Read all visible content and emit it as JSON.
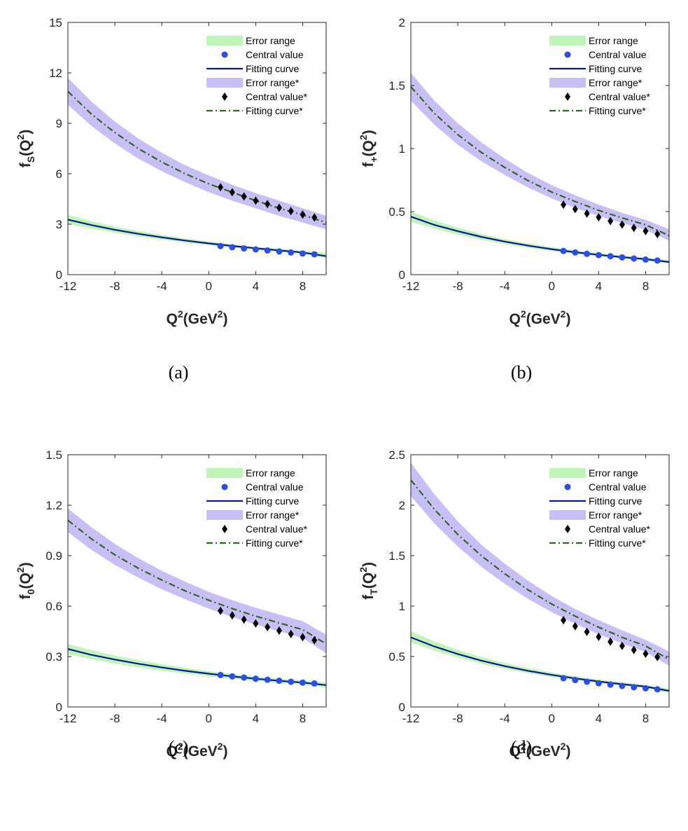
{
  "colors": {
    "band1": "#bff5b8",
    "band2": "#c8bff7",
    "point1": "#2a4fe8",
    "curve1": "#0a1a8c",
    "curve2": "#2d6a1c",
    "point2": "#000000",
    "axis": "#262626"
  },
  "legend": [
    {
      "key": "band1",
      "label": "Error range"
    },
    {
      "key": "point1",
      "label": "Central value"
    },
    {
      "key": "curve1",
      "label": "Fitting curve"
    },
    {
      "key": "band2",
      "label": "Error range*"
    },
    {
      "key": "point2",
      "label": "Central value*"
    },
    {
      "key": "curve2",
      "label": "Fitting curve*"
    }
  ],
  "chart_data": [
    {
      "panel": "a",
      "caption": "(a)",
      "type": "line",
      "ylabel_main": "f",
      "ylabel_sub": "S",
      "ylabel_paren": "(Q",
      "ylabel_sup": "2",
      "ylabel_close": ")",
      "xlabel_main": "Q",
      "xlabel_sup1": "2",
      "xlabel_mid": "(GeV",
      "xlabel_sup2": "2",
      "xlabel_close": ")",
      "xlim": [
        -12,
        10
      ],
      "ylim": [
        0,
        15
      ],
      "xticks": [
        -12,
        -8,
        -4,
        0,
        4,
        8
      ],
      "xtick_labels": [
        "-12",
        "-8",
        "-4",
        "0",
        "4",
        "8"
      ],
      "yticks": [
        0,
        3,
        6,
        9,
        12,
        15
      ],
      "ytick_labels": [
        "0",
        "3",
        "6",
        "9",
        "12",
        "15"
      ],
      "series1": {
        "fit_x": [
          -12,
          -10,
          -8,
          -6,
          -4,
          -2,
          0,
          2,
          4,
          6,
          8,
          10
        ],
        "fit_y": [
          3.27,
          2.95,
          2.67,
          2.43,
          2.22,
          2.03,
          1.86,
          1.71,
          1.57,
          1.44,
          1.32,
          1.1
        ],
        "band_lo": [
          3.02,
          2.74,
          2.5,
          2.28,
          2.08,
          1.91,
          1.75,
          1.61,
          1.48,
          1.35,
          1.22,
          0.98
        ],
        "band_hi": [
          3.55,
          3.18,
          2.86,
          2.6,
          2.37,
          2.16,
          1.97,
          1.8,
          1.66,
          1.53,
          1.42,
          1.3
        ],
        "points_x": [
          1,
          2,
          3,
          4,
          5,
          6,
          7,
          8,
          9
        ],
        "points_y": [
          1.7,
          1.63,
          1.56,
          1.5,
          1.44,
          1.38,
          1.32,
          1.26,
          1.21
        ]
      },
      "series2": {
        "fit_x": [
          -12,
          -10,
          -8,
          -6,
          -4,
          -2,
          0,
          2,
          4,
          6,
          8,
          10
        ],
        "fit_y": [
          10.9,
          9.55,
          8.45,
          7.5,
          6.7,
          6.0,
          5.4,
          4.9,
          4.4,
          3.95,
          3.55,
          3.1
        ],
        "band_lo": [
          10.1,
          8.85,
          7.8,
          6.9,
          6.15,
          5.5,
          4.9,
          4.4,
          3.95,
          3.5,
          3.1,
          2.7
        ],
        "band_hi": [
          11.7,
          10.3,
          9.1,
          8.1,
          7.25,
          6.5,
          5.9,
          5.35,
          4.85,
          4.4,
          3.95,
          3.5
        ],
        "points_x": [
          1,
          2,
          3,
          4,
          5,
          6,
          7,
          8,
          9
        ],
        "points_y": [
          5.2,
          4.9,
          4.65,
          4.4,
          4.2,
          3.98,
          3.78,
          3.58,
          3.4
        ]
      }
    },
    {
      "panel": "b",
      "caption": "(b)",
      "type": "line",
      "ylabel_main": "f",
      "ylabel_sub": "+",
      "ylabel_paren": "(Q",
      "ylabel_sup": "2",
      "ylabel_close": ")",
      "xlabel_main": "Q",
      "xlabel_sup1": "2",
      "xlabel_mid": "(GeV",
      "xlabel_sup2": "2",
      "xlabel_close": ")",
      "xlim": [
        -12,
        10
      ],
      "ylim": [
        0,
        2
      ],
      "xticks": [
        -12,
        -8,
        -4,
        0,
        4,
        8
      ],
      "xtick_labels": [
        "-12",
        "-8",
        "-4",
        "0",
        "4",
        "8"
      ],
      "yticks": [
        0,
        0.5,
        1,
        1.5,
        2
      ],
      "ytick_labels": [
        "0",
        "0.5",
        "1",
        "1.5",
        "2"
      ],
      "series1": {
        "fit_x": [
          -12,
          -10,
          -8,
          -6,
          -4,
          -2,
          0,
          2,
          4,
          6,
          8,
          10
        ],
        "fit_y": [
          0.46,
          0.395,
          0.345,
          0.3,
          0.262,
          0.23,
          0.202,
          0.178,
          0.157,
          0.139,
          0.123,
          0.1
        ],
        "band_lo": [
          0.42,
          0.365,
          0.318,
          0.277,
          0.243,
          0.213,
          0.187,
          0.165,
          0.145,
          0.128,
          0.112,
          0.09
        ],
        "band_hi": [
          0.5,
          0.43,
          0.372,
          0.323,
          0.282,
          0.247,
          0.218,
          0.192,
          0.17,
          0.151,
          0.135,
          0.115
        ],
        "points_x": [
          1,
          2,
          3,
          4,
          5,
          6,
          7,
          8,
          9
        ],
        "points_y": [
          0.188,
          0.176,
          0.165,
          0.155,
          0.146,
          0.137,
          0.128,
          0.12,
          0.112
        ]
      },
      "series2": {
        "fit_x": [
          -12,
          -10,
          -8,
          -6,
          -4,
          -2,
          0,
          2,
          4,
          6,
          8,
          10
        ],
        "fit_y": [
          1.49,
          1.28,
          1.11,
          0.97,
          0.85,
          0.745,
          0.655,
          0.58,
          0.51,
          0.45,
          0.395,
          0.31
        ],
        "band_lo": [
          1.38,
          1.19,
          1.03,
          0.9,
          0.79,
          0.69,
          0.605,
          0.53,
          0.465,
          0.41,
          0.355,
          0.27
        ],
        "band_hi": [
          1.6,
          1.38,
          1.2,
          1.05,
          0.92,
          0.805,
          0.71,
          0.63,
          0.555,
          0.49,
          0.435,
          0.36
        ],
        "points_x": [
          1,
          2,
          3,
          4,
          5,
          6,
          7,
          8,
          9
        ],
        "points_y": [
          0.555,
          0.52,
          0.485,
          0.455,
          0.425,
          0.397,
          0.371,
          0.346,
          0.322
        ]
      }
    },
    {
      "panel": "c",
      "caption": "(c)",
      "type": "line",
      "ylabel_main": "f",
      "ylabel_sub": "0",
      "ylabel_paren": "(Q",
      "ylabel_sup": "2",
      "ylabel_close": ")",
      "xlabel_main": "Q",
      "xlabel_sup1": "2",
      "xlabel_mid": "(GeV",
      "xlabel_sup2": "2",
      "xlabel_close": ")",
      "xlim": [
        -12,
        10
      ],
      "ylim": [
        0,
        1.5
      ],
      "xticks": [
        -12,
        -8,
        -4,
        0,
        4,
        8
      ],
      "xtick_labels": [
        "-12",
        "-8",
        "-4",
        "0",
        "4",
        "8"
      ],
      "yticks": [
        0,
        0.3,
        0.6,
        0.9,
        1.2,
        1.5
      ],
      "ytick_labels": [
        "0",
        "0.3",
        "0.6",
        "0.9",
        "1.2",
        "1.5"
      ],
      "series1": {
        "fit_x": [
          -12,
          -10,
          -8,
          -6,
          -4,
          -2,
          0,
          2,
          4,
          6,
          8,
          10
        ],
        "fit_y": [
          0.345,
          0.31,
          0.282,
          0.257,
          0.235,
          0.215,
          0.198,
          0.182,
          0.168,
          0.156,
          0.145,
          0.13
        ],
        "band_lo": [
          0.315,
          0.285,
          0.258,
          0.236,
          0.216,
          0.198,
          0.182,
          0.168,
          0.155,
          0.143,
          0.132,
          0.115
        ],
        "band_hi": [
          0.375,
          0.338,
          0.306,
          0.278,
          0.254,
          0.232,
          0.213,
          0.196,
          0.181,
          0.168,
          0.157,
          0.145
        ],
        "points_x": [
          1,
          2,
          3,
          4,
          5,
          6,
          7,
          8,
          9
        ],
        "points_y": [
          0.19,
          0.182,
          0.175,
          0.168,
          0.162,
          0.156,
          0.15,
          0.145,
          0.14
        ]
      },
      "series2": {
        "fit_x": [
          -12,
          -10,
          -8,
          -6,
          -4,
          -2,
          0,
          2,
          4,
          6,
          8,
          10
        ],
        "fit_y": [
          1.11,
          1.0,
          0.905,
          0.825,
          0.755,
          0.69,
          0.635,
          0.585,
          0.54,
          0.5,
          0.46,
          0.375
        ],
        "band_lo": [
          1.04,
          0.935,
          0.845,
          0.77,
          0.7,
          0.64,
          0.585,
          0.535,
          0.49,
          0.45,
          0.41,
          0.32
        ],
        "band_hi": [
          1.18,
          1.07,
          0.97,
          0.885,
          0.81,
          0.745,
          0.685,
          0.635,
          0.59,
          0.55,
          0.51,
          0.43
        ],
        "points_x": [
          1,
          2,
          3,
          4,
          5,
          6,
          7,
          8,
          9
        ],
        "points_y": [
          0.572,
          0.545,
          0.52,
          0.497,
          0.475,
          0.454,
          0.434,
          0.415,
          0.397
        ]
      }
    },
    {
      "panel": "d",
      "caption": "(d)",
      "type": "line",
      "ylabel_main": "f",
      "ylabel_sub": "T",
      "ylabel_paren": "(Q",
      "ylabel_sup": "2",
      "ylabel_close": ")",
      "xlabel_main": "Q",
      "xlabel_sup1": "2",
      "xlabel_mid": "(GeV",
      "xlabel_sup2": "2",
      "xlabel_close": ")",
      "xlim": [
        -12,
        10
      ],
      "ylim": [
        0,
        2.5
      ],
      "xticks": [
        -12,
        -8,
        -4,
        0,
        4,
        8
      ],
      "xtick_labels": [
        "-12",
        "-8",
        "-4",
        "0",
        "4",
        "8"
      ],
      "yticks": [
        0,
        0.5,
        1,
        1.5,
        2,
        2.5
      ],
      "ytick_labels": [
        "0",
        "0.5",
        "1",
        "1.5",
        "2",
        "2.5"
      ],
      "series1": {
        "fit_x": [
          -12,
          -10,
          -8,
          -6,
          -4,
          -2,
          0,
          2,
          4,
          6,
          8,
          10
        ],
        "fit_y": [
          0.69,
          0.6,
          0.525,
          0.46,
          0.405,
          0.358,
          0.318,
          0.283,
          0.253,
          0.226,
          0.202,
          0.16
        ],
        "band_lo": [
          0.64,
          0.56,
          0.49,
          0.43,
          0.378,
          0.334,
          0.297,
          0.264,
          0.236,
          0.21,
          0.187,
          0.145
        ],
        "band_hi": [
          0.75,
          0.65,
          0.565,
          0.495,
          0.435,
          0.384,
          0.341,
          0.304,
          0.272,
          0.244,
          0.219,
          0.18
        ],
        "points_x": [
          1,
          2,
          3,
          4,
          5,
          6,
          7,
          8,
          9
        ],
        "points_y": [
          0.285,
          0.267,
          0.25,
          0.235,
          0.221,
          0.208,
          0.196,
          0.185,
          0.175
        ]
      },
      "series2": {
        "fit_x": [
          -12,
          -10,
          -8,
          -6,
          -4,
          -2,
          0,
          2,
          4,
          6,
          8,
          10
        ],
        "fit_y": [
          2.25,
          1.96,
          1.71,
          1.5,
          1.32,
          1.16,
          1.02,
          0.9,
          0.79,
          0.69,
          0.605,
          0.47
        ],
        "band_lo": [
          2.09,
          1.82,
          1.59,
          1.39,
          1.22,
          1.07,
          0.94,
          0.825,
          0.72,
          0.63,
          0.545,
          0.41
        ],
        "band_hi": [
          2.42,
          2.11,
          1.84,
          1.61,
          1.42,
          1.25,
          1.1,
          0.97,
          0.86,
          0.76,
          0.665,
          0.55
        ],
        "points_x": [
          1,
          2,
          3,
          4,
          5,
          6,
          7,
          8,
          9
        ],
        "points_y": [
          0.86,
          0.8,
          0.745,
          0.695,
          0.648,
          0.605,
          0.565,
          0.528,
          0.495
        ]
      }
    }
  ]
}
